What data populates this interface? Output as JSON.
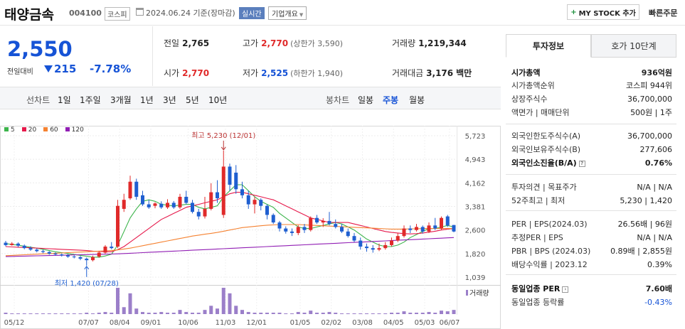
{
  "header": {
    "title": "태양금속",
    "code": "004100",
    "market": "코스피",
    "date": "2024.06.24 기준(장마감)",
    "realtime": "실시간",
    "company_overview": "기업개요",
    "mystock": "MY STOCK 추가",
    "quick_order": "빠른주문"
  },
  "price": {
    "current": "2,550",
    "change_label": "전일대비",
    "change": "215",
    "change_pct": "-7.78%"
  },
  "stats": {
    "prev_close_label": "전일",
    "prev_close": "2,765",
    "high_label": "고가",
    "high": "2,770",
    "upper_limit": "(상한가 3,590)",
    "volume_label": "거래량",
    "volume": "1,219,344",
    "open_label": "시가",
    "open": "2,770",
    "low_label": "저가",
    "low": "2,525",
    "lower_limit": "(하한가 1,940)",
    "amount_label": "거래대금",
    "amount": "3,176",
    "amount_unit": "백만"
  },
  "period_bar": {
    "line_chart": "선차트",
    "periods": [
      "1일",
      "1주일",
      "3개월",
      "1년",
      "3년",
      "5년",
      "10년"
    ],
    "candle_chart": "봉차트",
    "candles": [
      "일봉",
      "주봉",
      "월봉"
    ],
    "selected_candle": "주봉"
  },
  "legend": [
    {
      "label": "5",
      "color": "#3cb44b"
    },
    {
      "label": "20",
      "color": "#e6194b"
    },
    {
      "label": "60",
      "color": "#f58231"
    },
    {
      "label": "120",
      "color": "#911eb4"
    }
  ],
  "chart_data": {
    "type": "candlestick",
    "period": "주봉",
    "x_ticks": [
      "05/12",
      "07/07",
      "08/04",
      "09/01",
      "10/06",
      "11/03",
      "12/01",
      "01/05",
      "02/02",
      "03/08",
      "04/05",
      "05/03",
      "06/07"
    ],
    "y_ticks": [
      "5,723",
      "4,943",
      "4,162",
      "3,381",
      "2,600",
      "1,820",
      "1,039"
    ],
    "ylim": [
      1039,
      5723
    ],
    "volume_label": "거래량",
    "annotations": {
      "high": "최고 5,230 (12/01)",
      "low": "최저 1,420 (07/28)"
    },
    "candles": [
      {
        "o": 2180,
        "c": 2100,
        "h": 2240,
        "l": 2060
      },
      {
        "o": 2100,
        "c": 2150,
        "h": 2200,
        "l": 2080
      },
      {
        "o": 2150,
        "c": 2080,
        "h": 2190,
        "l": 2040
      },
      {
        "o": 2080,
        "c": 2000,
        "h": 2120,
        "l": 1960
      },
      {
        "o": 2000,
        "c": 1950,
        "h": 2060,
        "l": 1910
      },
      {
        "o": 1950,
        "c": 1900,
        "h": 1990,
        "l": 1860
      },
      {
        "o": 1900,
        "c": 1870,
        "h": 1950,
        "l": 1830
      },
      {
        "o": 1870,
        "c": 1820,
        "h": 1900,
        "l": 1780
      },
      {
        "o": 1820,
        "c": 1790,
        "h": 1860,
        "l": 1750
      },
      {
        "o": 1790,
        "c": 1760,
        "h": 1820,
        "l": 1720
      },
      {
        "o": 1760,
        "c": 1720,
        "h": 1800,
        "l": 1680
      },
      {
        "o": 1720,
        "c": 1700,
        "h": 1760,
        "l": 1660
      },
      {
        "o": 1700,
        "c": 1650,
        "h": 1740,
        "l": 1600
      },
      {
        "o": 1650,
        "c": 1600,
        "h": 1690,
        "l": 1420
      },
      {
        "o": 1600,
        "c": 1700,
        "h": 1750,
        "l": 1560
      },
      {
        "o": 1720,
        "c": 1850,
        "h": 1900,
        "l": 1680
      },
      {
        "o": 1850,
        "c": 2050,
        "h": 2100,
        "l": 1820
      },
      {
        "o": 2050,
        "c": 2000,
        "h": 2200,
        "l": 1960
      },
      {
        "o": 2050,
        "c": 3400,
        "h": 3600,
        "l": 2000
      },
      {
        "o": 3300,
        "c": 3600,
        "h": 3800,
        "l": 3200
      },
      {
        "o": 3650,
        "c": 4200,
        "h": 4400,
        "l": 3600
      },
      {
        "o": 4200,
        "c": 3700,
        "h": 4300,
        "l": 3600
      },
      {
        "o": 3750,
        "c": 3450,
        "h": 3900,
        "l": 3400
      },
      {
        "o": 3450,
        "c": 3350,
        "h": 3600,
        "l": 3300
      },
      {
        "o": 3400,
        "c": 3480,
        "h": 3520,
        "l": 3320
      },
      {
        "o": 3470,
        "c": 3350,
        "h": 3550,
        "l": 3300
      },
      {
        "o": 3350,
        "c": 3500,
        "h": 3620,
        "l": 3300
      },
      {
        "o": 3500,
        "c": 3350,
        "h": 3560,
        "l": 3300
      },
      {
        "o": 3350,
        "c": 3700,
        "h": 3800,
        "l": 3300
      },
      {
        "o": 3700,
        "c": 3500,
        "h": 3900,
        "l": 3450
      },
      {
        "o": 3500,
        "c": 3200,
        "h": 3600,
        "l": 3150
      },
      {
        "o": 3200,
        "c": 3050,
        "h": 3300,
        "l": 2950
      },
      {
        "o": 3050,
        "c": 3300,
        "h": 3700,
        "l": 2980
      },
      {
        "o": 3300,
        "c": 3850,
        "h": 4150,
        "l": 3250
      },
      {
        "o": 3850,
        "c": 3650,
        "h": 4250,
        "l": 3500
      },
      {
        "o": 3100,
        "c": 4700,
        "h": 5230,
        "l": 3000
      },
      {
        "o": 4700,
        "c": 4100,
        "h": 4800,
        "l": 3900
      },
      {
        "o": 4500,
        "c": 3950,
        "h": 4750,
        "l": 3800
      },
      {
        "o": 3950,
        "c": 3750,
        "h": 4200,
        "l": 3650
      },
      {
        "o": 3750,
        "c": 3450,
        "h": 3900,
        "l": 3300
      },
      {
        "o": 3450,
        "c": 3600,
        "h": 3700,
        "l": 3150
      },
      {
        "o": 3600,
        "c": 3400,
        "h": 3650,
        "l": 3250
      },
      {
        "o": 3400,
        "c": 3100,
        "h": 3450,
        "l": 2950
      },
      {
        "o": 3100,
        "c": 2850,
        "h": 3150,
        "l": 2800
      },
      {
        "o": 2850,
        "c": 2650,
        "h": 2900,
        "l": 2550
      },
      {
        "o": 2650,
        "c": 2550,
        "h": 2720,
        "l": 2480
      },
      {
        "o": 2550,
        "c": 2500,
        "h": 2650,
        "l": 2400
      },
      {
        "o": 2500,
        "c": 2700,
        "h": 2760,
        "l": 2430
      },
      {
        "o": 2700,
        "c": 2600,
        "h": 2800,
        "l": 2500
      },
      {
        "o": 2600,
        "c": 3000,
        "h": 3050,
        "l": 2550
      },
      {
        "o": 3000,
        "c": 2850,
        "h": 3100,
        "l": 2800
      },
      {
        "o": 2850,
        "c": 2900,
        "h": 2990,
        "l": 2700
      },
      {
        "o": 2900,
        "c": 2800,
        "h": 3200,
        "l": 2750
      },
      {
        "o": 2800,
        "c": 2700,
        "h": 2950,
        "l": 2650
      },
      {
        "o": 2700,
        "c": 2550,
        "h": 2800,
        "l": 2500
      },
      {
        "o": 2550,
        "c": 2400,
        "h": 2650,
        "l": 2350
      },
      {
        "o": 2400,
        "c": 2250,
        "h": 2500,
        "l": 2200
      },
      {
        "o": 2250,
        "c": 2050,
        "h": 2350,
        "l": 1950
      },
      {
        "o": 2050,
        "c": 2000,
        "h": 2150,
        "l": 1880
      },
      {
        "o": 2000,
        "c": 1950,
        "h": 2100,
        "l": 1850
      },
      {
        "o": 1950,
        "c": 2000,
        "h": 2150,
        "l": 1900
      },
      {
        "o": 2000,
        "c": 2100,
        "h": 2200,
        "l": 1950
      },
      {
        "o": 2100,
        "c": 2250,
        "h": 2350,
        "l": 2050
      },
      {
        "o": 2250,
        "c": 2400,
        "h": 2500,
        "l": 2200
      },
      {
        "o": 2400,
        "c": 2650,
        "h": 2750,
        "l": 2350
      },
      {
        "o": 2650,
        "c": 2600,
        "h": 2750,
        "l": 2500
      },
      {
        "o": 2600,
        "c": 2700,
        "h": 2800,
        "l": 2550
      },
      {
        "o": 2700,
        "c": 2550,
        "h": 2750,
        "l": 2480
      },
      {
        "o": 2550,
        "c": 2750,
        "h": 2850,
        "l": 2500
      },
      {
        "o": 2750,
        "c": 2650,
        "h": 3000,
        "l": 2600
      },
      {
        "o": 2650,
        "c": 3000,
        "h": 3050,
        "l": 2600
      },
      {
        "o": 3050,
        "c": 2750,
        "h": 3100,
        "l": 2700
      },
      {
        "o": 2765,
        "c": 2550,
        "h": 2770,
        "l": 2525
      }
    ],
    "volume": [
      2,
      1,
      1,
      1,
      1,
      1,
      1,
      1,
      1,
      1,
      1,
      1,
      1,
      2,
      1,
      2,
      3,
      2,
      38,
      10,
      30,
      8,
      3,
      2,
      2,
      3,
      2,
      2,
      6,
      3,
      2,
      2,
      6,
      12,
      8,
      38,
      30,
      12,
      6,
      3,
      2,
      2,
      2,
      2,
      2,
      1,
      1,
      3,
      2,
      5,
      2,
      2,
      3,
      2,
      1,
      1,
      1,
      1,
      1,
      1,
      1,
      1,
      2,
      2,
      4,
      2,
      2,
      2,
      3,
      2,
      5,
      4,
      6
    ],
    "ma": {
      "ma5": [
        2150,
        2120,
        2100,
        2060,
        2030,
        2000,
        1960,
        1920,
        1880,
        1850,
        1820,
        1790,
        1760,
        1730,
        1700,
        1700,
        1740,
        1800,
        2100,
        2550,
        3000,
        3300,
        3550,
        3600,
        3550,
        3450,
        3420,
        3400,
        3420,
        3450,
        3450,
        3350,
        3300,
        3350,
        3400,
        3700,
        3900,
        4100,
        4100,
        3900,
        3700,
        3550,
        3450,
        3350,
        3150,
        3000,
        2850,
        2700,
        2650,
        2650,
        2700,
        2750,
        2800,
        2850,
        2800,
        2700,
        2600,
        2450,
        2300,
        2200,
        2100,
        2050,
        2050,
        2100,
        2200,
        2350,
        2450,
        2550,
        2650,
        2650,
        2700,
        2750,
        2700
      ],
      "ma20": [
        2050,
        2040,
        2030,
        2020,
        2010,
        2000,
        1990,
        1980,
        1970,
        1960,
        1950,
        1940,
        1930,
        1920,
        1900,
        1890,
        1880,
        1880,
        1950,
        2050,
        2200,
        2350,
        2500,
        2650,
        2800,
        2950,
        3050,
        3150,
        3250,
        3350,
        3400,
        3450,
        3500,
        3550,
        3600,
        3700,
        3800,
        3850,
        3850,
        3800,
        3750,
        3700,
        3650,
        3600,
        3500,
        3400,
        3300,
        3200,
        3100,
        3000,
        2950,
        2900,
        2850,
        2850,
        2850,
        2850,
        2800,
        2750,
        2700,
        2650,
        2600,
        2550,
        2520,
        2500,
        2480,
        2470,
        2480,
        2500,
        2530,
        2560,
        2600,
        2630,
        2650
      ],
      "ma60": [
        1750,
        1760,
        1770,
        1780,
        1790,
        1800,
        1810,
        1820,
        1830,
        1840,
        1850,
        1860,
        1870,
        1880,
        1890,
        1900,
        1910,
        1920,
        1940,
        1970,
        2000,
        2040,
        2080,
        2120,
        2160,
        2200,
        2240,
        2280,
        2320,
        2360,
        2400,
        2430,
        2460,
        2490,
        2520,
        2560,
        2600,
        2640,
        2680,
        2700,
        2720,
        2740,
        2760,
        2770,
        2780,
        2780,
        2780,
        2780,
        2770,
        2760,
        2750,
        2740,
        2730,
        2720,
        2710,
        2700,
        2690,
        2680,
        2670,
        2660,
        2650,
        2640,
        2630,
        2630,
        2630,
        2640,
        2640,
        2650,
        2650,
        2650,
        2650,
        2650,
        2650
      ],
      "ma120": [
        1720,
        1725,
        1730,
        1735,
        1740,
        1745,
        1750,
        1755,
        1760,
        1765,
        1770,
        1775,
        1780,
        1785,
        1790,
        1795,
        1800,
        1805,
        1810,
        1820,
        1830,
        1840,
        1850,
        1860,
        1870,
        1880,
        1890,
        1900,
        1910,
        1920,
        1930,
        1940,
        1950,
        1960,
        1970,
        1980,
        1990,
        2000,
        2010,
        2020,
        2030,
        2040,
        2050,
        2060,
        2070,
        2080,
        2090,
        2100,
        2110,
        2120,
        2130,
        2140,
        2150,
        2160,
        2170,
        2180,
        2190,
        2200,
        2210,
        2220,
        2230,
        2240,
        2250,
        2260,
        2270,
        2280,
        2290,
        2300,
        2310,
        2320,
        2330,
        2340,
        2350
      ]
    }
  },
  "panel": {
    "tab_active": "투자정보",
    "tab_inactive": "호가 10단계",
    "rows": [
      {
        "label": "시가총액",
        "value": "936억원",
        "bold": true
      },
      {
        "label": "시가총액순위",
        "value": "코스피 944위"
      },
      {
        "label": "상장주식수",
        "value": "36,700,000"
      },
      {
        "label": "액면가 | 매매단위",
        "value": "500원 | 1주"
      },
      {
        "label": "외국인한도주식수(A)",
        "value": "36,700,000"
      },
      {
        "label": "외국인보유주식수(B)",
        "value": "277,606"
      },
      {
        "label": "외국인소진율(B/A)",
        "value": "0.76%",
        "bold": true
      },
      {
        "label": "투자의견 | 목표주가",
        "value": "N/A | N/A"
      },
      {
        "label": "52주최고 | 최저",
        "value": "5,230 | 1,420"
      },
      {
        "label": "PER | EPS(2024.03)",
        "value": "26.56배 | 96원"
      },
      {
        "label": "추정PER | EPS",
        "value": "N/A | N/A"
      },
      {
        "label": "PBR | BPS (2024.03)",
        "value": "0.89배 | 2,855원"
      },
      {
        "label": "배당수익률 | 2023.12",
        "value": "0.39%"
      },
      {
        "label": "동일업종 PER",
        "value": "7.60배",
        "bold": true
      },
      {
        "label": "동일업종 등락률",
        "value": "-0.43%",
        "blue": true
      }
    ]
  }
}
